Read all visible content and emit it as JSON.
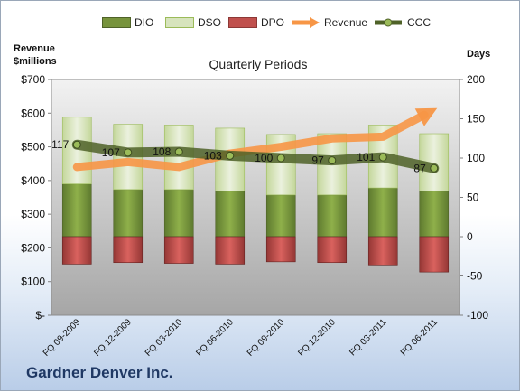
{
  "legend": {
    "dio": "DIO",
    "dso": "DSO",
    "dpo": "DPO",
    "revenue": "Revenue",
    "ccc": "CCC"
  },
  "left_axis_title_line1": "Revenue",
  "left_axis_title_line2": "$millions",
  "right_axis_title": "Days",
  "plot_title": "Quarterly Periods",
  "company": "Gardner Denver Inc.",
  "colors": {
    "dio": "#77933c",
    "dso": "#d7e4bd",
    "dpo": "#c0504d",
    "revenue": "#f79646",
    "ccc": "#4f6228",
    "plot_bg_top": "#f2f2f2",
    "plot_bg_bottom": "#a6a6a6"
  },
  "chart_data": {
    "type": "bar",
    "title": "Quarterly Periods",
    "categories": [
      "FQ 09-2009",
      "FQ 12-2009",
      "FQ 03-2010",
      "FQ 06-2010",
      "FQ 09-2010",
      "FQ 12-2010",
      "FQ 03-2011",
      "FQ 06-2011"
    ],
    "left_axis": {
      "label": "Revenue $millions",
      "ylim": [
        0,
        700
      ],
      "ticks": [
        0,
        100,
        200,
        300,
        400,
        500,
        600,
        700
      ],
      "tick_labels": [
        "$-",
        "$100",
        "$200",
        "$300",
        "$400",
        "$500",
        "$600",
        "$700"
      ]
    },
    "right_axis": {
      "label": "Days",
      "ylim": [
        -100,
        200
      ],
      "ticks": [
        -100,
        -50,
        0,
        50,
        100,
        150,
        200
      ]
    },
    "series": [
      {
        "name": "DIO",
        "axis": "right",
        "kind": "stacked-bar",
        "values": [
          67,
          60,
          60,
          58,
          53,
          53,
          62,
          58
        ]
      },
      {
        "name": "DSO",
        "axis": "right",
        "kind": "stacked-bar",
        "values": [
          85,
          83,
          82,
          80,
          77,
          78,
          80,
          73
        ]
      },
      {
        "name": "DPO",
        "axis": "right",
        "kind": "negative-bar",
        "values": [
          -35,
          -33,
          -34,
          -35,
          -32,
          -33,
          -36,
          -45
        ]
      },
      {
        "name": "Revenue",
        "axis": "left",
        "kind": "line",
        "values": [
          440,
          455,
          440,
          480,
          500,
          525,
          530,
          610
        ]
      },
      {
        "name": "CCC",
        "axis": "right",
        "kind": "line",
        "values": [
          117,
          107,
          108,
          103,
          100,
          97,
          101,
          87
        ]
      }
    ],
    "data_labels": {
      "series": "CCC",
      "values": [
        "117",
        "107",
        "108",
        "103",
        "100",
        "97",
        "101",
        "87"
      ]
    },
    "grid": false,
    "legend_position": "top"
  }
}
